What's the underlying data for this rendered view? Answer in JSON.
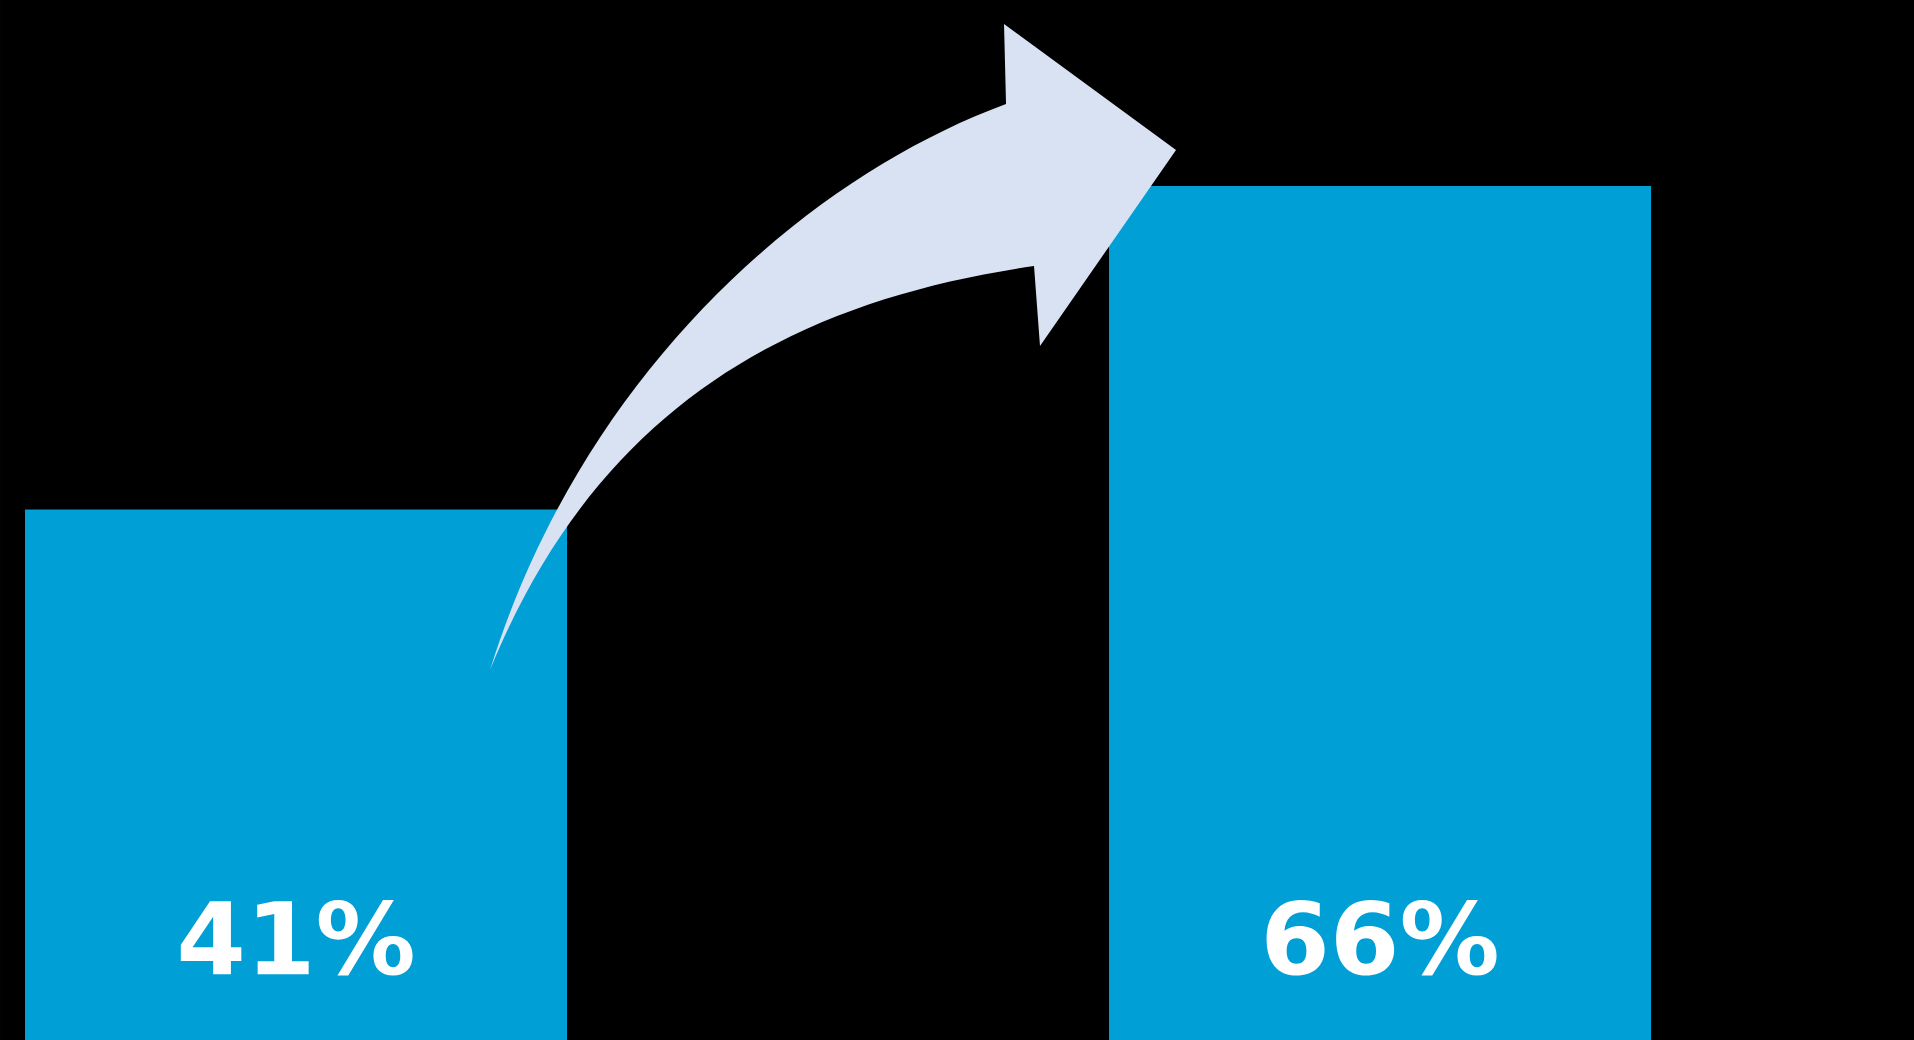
{
  "chart_data": {
    "type": "bar",
    "categories": [
      null,
      null
    ],
    "values": [
      41,
      66
    ],
    "color": "#009fd6",
    "value_labels": [
      "41%",
      "66%"
    ]
  }
}
